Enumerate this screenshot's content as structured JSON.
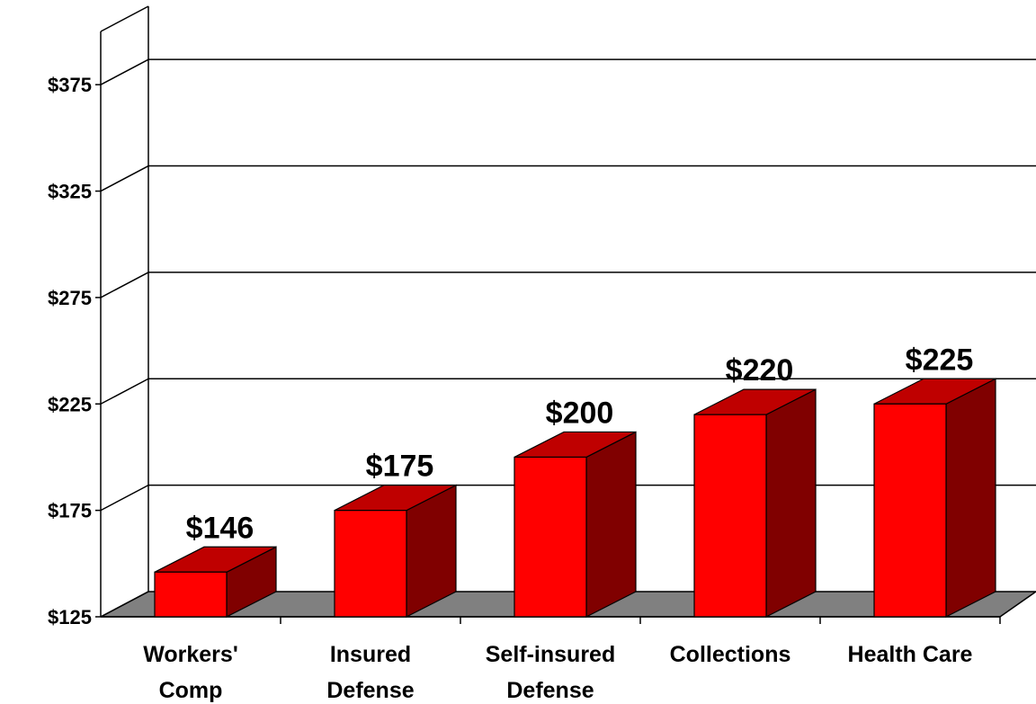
{
  "chart_data": {
    "type": "bar3d",
    "categories": [
      [
        "Workers'",
        "Comp"
      ],
      [
        "Insured",
        "Defense"
      ],
      [
        "Self-insured",
        "Defense"
      ],
      [
        "Collections"
      ],
      [
        "Health Care"
      ]
    ],
    "values": [
      146,
      175,
      200,
      220,
      225
    ],
    "value_labels": [
      "$146",
      "$175",
      "$200",
      "$220",
      "$225"
    ],
    "color": "#ff0000",
    "ylim": [
      125,
      400
    ],
    "yticks": [
      {
        "value": 125,
        "label": "$125"
      },
      {
        "value": 175,
        "label": "$175"
      },
      {
        "value": 225,
        "label": "$225"
      },
      {
        "value": 275,
        "label": "$275"
      },
      {
        "value": 325,
        "label": "$325"
      },
      {
        "value": 375,
        "label": "$375"
      }
    ],
    "grid": true
  }
}
